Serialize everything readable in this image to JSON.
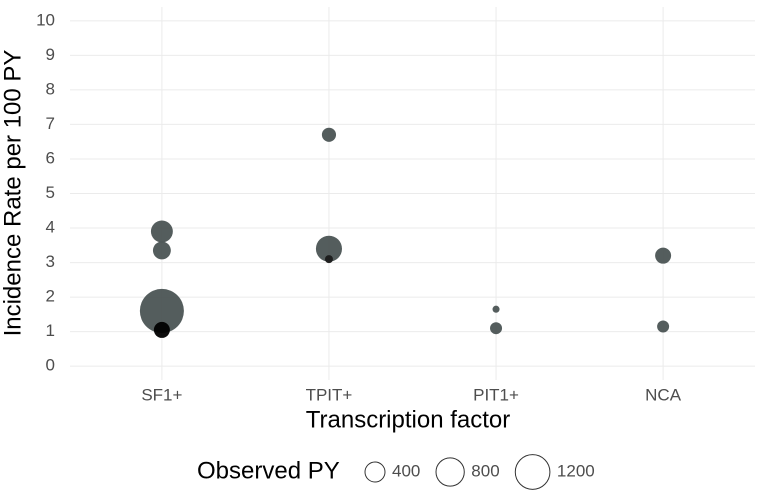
{
  "chart_data": {
    "type": "scatter",
    "x_label": "Transcription factor",
    "y_label": "Incidence Rate per 100 PY",
    "categories": [
      "SF1+",
      "TPIT+",
      "PIT1+",
      "NCA"
    ],
    "x": [
      "SF1+",
      "SF1+",
      "SF1+",
      "SF1+",
      "TPIT+",
      "TPIT+",
      "TPIT+",
      "PIT1+",
      "PIT1+",
      "NCA",
      "NCA"
    ],
    "values": [
      3.9,
      3.35,
      1.6,
      1.05,
      6.7,
      3.4,
      3.1,
      1.65,
      1.1,
      3.2,
      1.15
    ],
    "sizes": [
      480,
      320,
      1940,
      256,
      200,
      680,
      64,
      50,
      144,
      256,
      144
    ],
    "colors": [
      "#4b5454",
      "#4b5454",
      "#4b5454",
      "#000000",
      "#4b5454",
      "#4b5454",
      "#1a1a1a",
      "#4b5454",
      "#4b5454",
      "#4b5454",
      "#4b5454"
    ],
    "ylim": [
      -0.4,
      10.4
    ],
    "yticks": [
      0,
      1,
      2,
      3,
      4,
      5,
      6,
      7,
      8,
      9,
      10
    ],
    "grid": true,
    "legend": {
      "title": "Observed PY",
      "sizes": [
        400,
        800,
        1200
      ],
      "labels": [
        "400",
        "800",
        "1200"
      ],
      "position": "bottom"
    }
  }
}
